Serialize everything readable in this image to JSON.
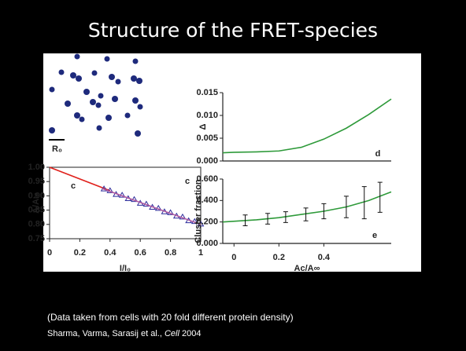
{
  "title": "Structure of the FRET-species",
  "figure": {
    "scale_label": "R₀"
  },
  "chart_data": [
    {
      "type": "line",
      "panel_label": "c",
      "annotation": "c",
      "xlabel": "I/I₀",
      "ylabel": "A/A∞",
      "xlim": [
        0,
        1
      ],
      "ylim": [
        0.75,
        1.0
      ],
      "xticks": [
        0,
        0.2,
        0.4,
        0.6,
        0.8,
        1
      ],
      "yticks": [
        {
          "value": 1,
          "label": "1.00"
        },
        0.95,
        {
          "value": 0.9,
          "label": "0.90"
        },
        0.85,
        {
          "value": 0.8,
          "label": "0.80"
        },
        0.75
      ],
      "series": [
        {
          "color": "#e0201b",
          "style": "line",
          "x": [
            0,
            0.4
          ],
          "values": [
            1.0,
            0.918
          ]
        },
        {
          "color": "#2c2c9c",
          "style": "marker",
          "x": [
            0.36,
            0.4,
            0.44,
            0.48,
            0.52,
            0.56,
            0.6,
            0.64,
            0.68,
            0.72,
            0.76,
            0.8,
            0.84,
            0.88,
            0.92,
            0.96,
            1.0
          ],
          "values": [
            0.924,
            0.918,
            0.905,
            0.902,
            0.89,
            0.887,
            0.874,
            0.871,
            0.86,
            0.856,
            0.844,
            0.841,
            0.829,
            0.826,
            0.813,
            0.81,
            0.801
          ]
        },
        {
          "color": "#b05aa0",
          "style": "line",
          "x": [
            0.35,
            1.0
          ],
          "values": [
            0.925,
            0.8
          ]
        }
      ]
    },
    {
      "type": "line",
      "panel_label": "d",
      "ylabel": "Δ",
      "xlim": [
        -0.05,
        0.7
      ],
      "ylim": [
        0,
        0.015
      ],
      "yticks": [
        {
          "value": 0,
          "label": "0.000"
        },
        {
          "value": 0.005,
          "label": "0.005"
        },
        {
          "value": 0.01,
          "label": "0.010"
        },
        {
          "value": 0.015,
          "label": "0.015"
        }
      ],
      "series": [
        {
          "color": "#2e9a3a",
          "style": "line",
          "x": [
            -0.05,
            0,
            0.1,
            0.2,
            0.3,
            0.4,
            0.5,
            0.6,
            0.7
          ],
          "values": [
            0.0018,
            0.0019,
            0.002,
            0.0022,
            0.003,
            0.0048,
            0.0072,
            0.0102,
            0.0136
          ]
        }
      ]
    },
    {
      "type": "line",
      "panel_label": "e",
      "xlabel": "Ac/A∞",
      "ylabel": "Cluster fraction",
      "xlim": [
        -0.05,
        0.7
      ],
      "ylim": [
        0,
        0.6
      ],
      "xticks": [
        0,
        0.2,
        0.4
      ],
      "yticks": [
        {
          "value": 0,
          "label": "0.000"
        },
        {
          "value": 0.2,
          "label": "0.200"
        },
        {
          "value": 0.4,
          "label": "0.400"
        },
        {
          "value": 0.6,
          "label": "0.600"
        }
      ],
      "series": [
        {
          "color": "#2e9a3a",
          "style": "line",
          "x": [
            -0.05,
            0.1,
            0.2,
            0.3,
            0.4,
            0.5,
            0.6,
            0.7
          ],
          "values": [
            0.2,
            0.22,
            0.24,
            0.27,
            0.3,
            0.34,
            0.4,
            0.48
          ]
        },
        {
          "color": "#111111",
          "style": "errorbar",
          "x": [
            0.05,
            0.15,
            0.23,
            0.32,
            0.4,
            0.5,
            0.58,
            0.65
          ],
          "values": [
            0.215,
            0.23,
            0.245,
            0.27,
            0.3,
            0.34,
            0.38,
            0.43
          ],
          "errors": [
            0.05,
            0.05,
            0.05,
            0.06,
            0.07,
            0.1,
            0.15,
            0.14
          ]
        }
      ]
    }
  ],
  "caption": "(Data taken from cells with 20 fold different protein density)",
  "citation": {
    "authors": "Sharma, Varma, Sarasij et al.,",
    "journal": "Cell",
    "year": "2004"
  }
}
